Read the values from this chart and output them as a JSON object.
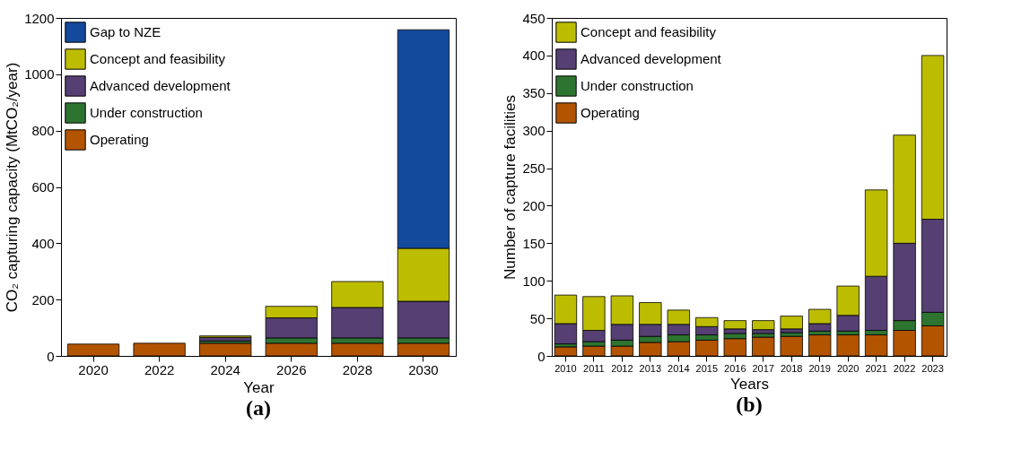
{
  "chart_data": [
    {
      "type": "bar",
      "stacked": true,
      "xlabel": "Year",
      "ylabel": "CO₂ capturing capacity (MtCO₂/year)",
      "categories": [
        "2020",
        "2022",
        "2024",
        "2026",
        "2028",
        "2030"
      ],
      "ylim": [
        0,
        1200
      ],
      "yticks": [
        0,
        200,
        400,
        600,
        800,
        1000,
        1200
      ],
      "legend": "top left",
      "annotations": [
        "(a)"
      ],
      "series": [
        {
          "name": "Operating",
          "color": "#b35400",
          "values": [
            42,
            45,
            45,
            45,
            45,
            45
          ]
        },
        {
          "name": "Under construction",
          "color": "#2e7431",
          "values": [
            null,
            null,
            8,
            19,
            19,
            19
          ]
        },
        {
          "name": "Advanced development",
          "color": "#553f73",
          "values": [
            null,
            null,
            13,
            71,
            108,
            130
          ]
        },
        {
          "name": "Concept and feasibility",
          "color": "#bdbd00",
          "values": [
            null,
            null,
            5,
            41,
            92,
            188
          ]
        },
        {
          "name": "Gap to NZE",
          "color": "#134a9c",
          "values": [
            null,
            null,
            null,
            null,
            null,
            776
          ]
        }
      ]
    },
    {
      "type": "bar",
      "stacked": true,
      "xlabel": "Years",
      "ylabel": "Number of capture facilities",
      "categories": [
        "2010",
        "2011",
        "2012",
        "2013",
        "2014",
        "2015",
        "2016",
        "2017",
        "2018",
        "2019",
        "2020",
        "2021",
        "2022",
        "2023"
      ],
      "ylim": [
        0,
        450
      ],
      "yticks": [
        0,
        50,
        100,
        150,
        200,
        250,
        300,
        350,
        400,
        450
      ],
      "legend": "top left",
      "annotations": [
        "(b)"
      ],
      "series": [
        {
          "name": "Operating",
          "color": "#b35400",
          "values": [
            12,
            13,
            13,
            18,
            19,
            21,
            23,
            25,
            26,
            28,
            28,
            28,
            34,
            40
          ]
        },
        {
          "name": "Under construction",
          "color": "#2e7431",
          "values": [
            4,
            6,
            8,
            8,
            9,
            7,
            7,
            5,
            5,
            5,
            5,
            6,
            13,
            18
          ]
        },
        {
          "name": "Advanced development",
          "color": "#553f73",
          "values": [
            27,
            15,
            21,
            16,
            14,
            11,
            6,
            5,
            5,
            10,
            21,
            72,
            103,
            124
          ]
        },
        {
          "name": "Concept and feasibility",
          "color": "#bdbd00",
          "values": [
            38,
            45,
            38,
            29,
            19,
            12,
            11,
            12,
            17,
            19,
            39,
            115,
            144,
            218
          ]
        }
      ]
    }
  ]
}
